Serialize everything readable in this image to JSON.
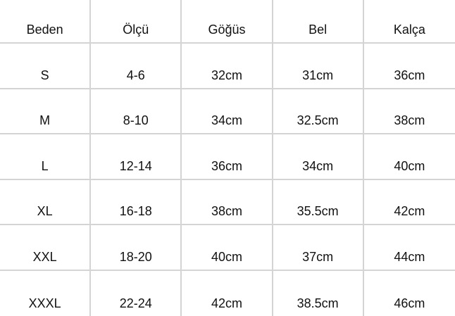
{
  "table": {
    "headers": [
      "Beden",
      "Ölçü",
      "Göğüs",
      "Bel",
      "Kalça"
    ],
    "rows": [
      [
        "S",
        "4-6",
        "32cm",
        "31cm",
        "36cm"
      ],
      [
        "M",
        "8-10",
        "34cm",
        "32.5cm",
        "38cm"
      ],
      [
        "L",
        "12-14",
        "36cm",
        "34cm",
        "40cm"
      ],
      [
        "XL",
        "16-18",
        "38cm",
        "35.5cm",
        "42cm"
      ],
      [
        "XXL",
        "18-20",
        "40cm",
        "37cm",
        "44cm"
      ],
      [
        "XXXL",
        "22-24",
        "42cm",
        "38.5cm",
        "46cm"
      ]
    ]
  }
}
